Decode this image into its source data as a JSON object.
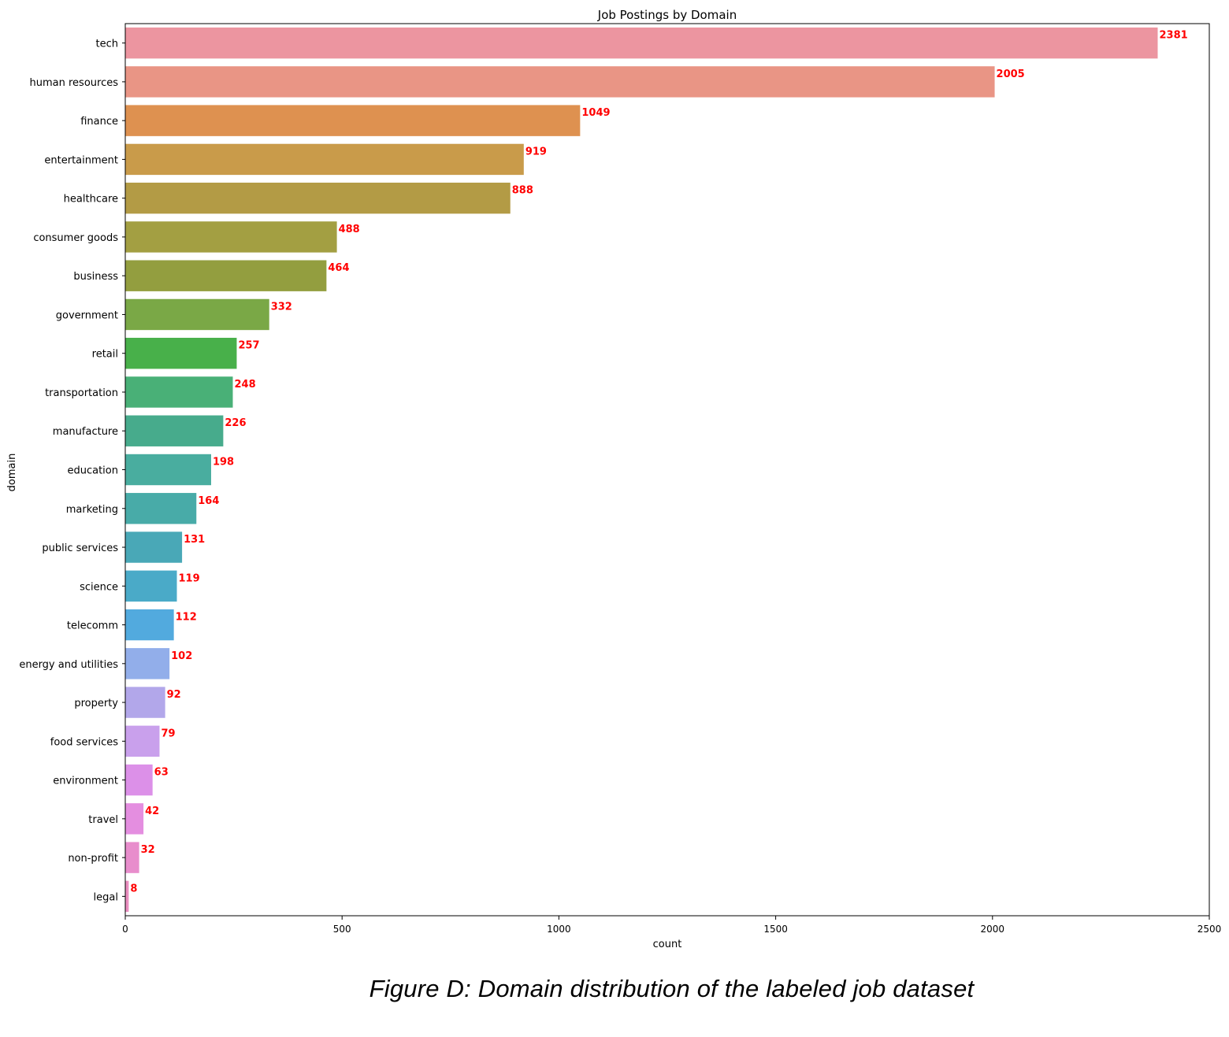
{
  "chart_data": {
    "type": "bar",
    "orientation": "horizontal",
    "title": "Job Postings by Domain",
    "xlabel": "count",
    "ylabel": "domain",
    "xlim": [
      0,
      2500
    ],
    "xticks": [
      0,
      500,
      1000,
      1500,
      2000,
      2500
    ],
    "grid": false,
    "legend": "none",
    "value_label_color": "#ff0000",
    "categories": [
      "tech",
      "human resources",
      "finance",
      "entertainment",
      "healthcare",
      "consumer goods",
      "business",
      "government",
      "retail",
      "transportation",
      "manufacture",
      "education",
      "marketing",
      "public services",
      "science",
      "telecomm",
      "energy and utilities",
      "property",
      "food services",
      "environment",
      "travel",
      "non-profit",
      "legal"
    ],
    "values": [
      2381,
      2005,
      1049,
      919,
      888,
      488,
      464,
      332,
      257,
      248,
      226,
      198,
      164,
      131,
      119,
      112,
      102,
      92,
      79,
      63,
      42,
      32,
      8
    ],
    "colors": [
      "#ec95a0",
      "#e99585",
      "#de9150",
      "#c99b4a",
      "#b39b45",
      "#a39f42",
      "#939e3f",
      "#7aa846",
      "#48b04a",
      "#49b077",
      "#47ab8c",
      "#49ad9f",
      "#48aba8",
      "#49a8b7",
      "#4aaac8",
      "#52aade",
      "#92aeea",
      "#b2a7ea",
      "#c9a0ec",
      "#dc90e8",
      "#e48ee0",
      "#e88dcc",
      "#ea8dbf"
    ]
  },
  "caption": "Figure D: Domain distribution of the labeled job dataset"
}
